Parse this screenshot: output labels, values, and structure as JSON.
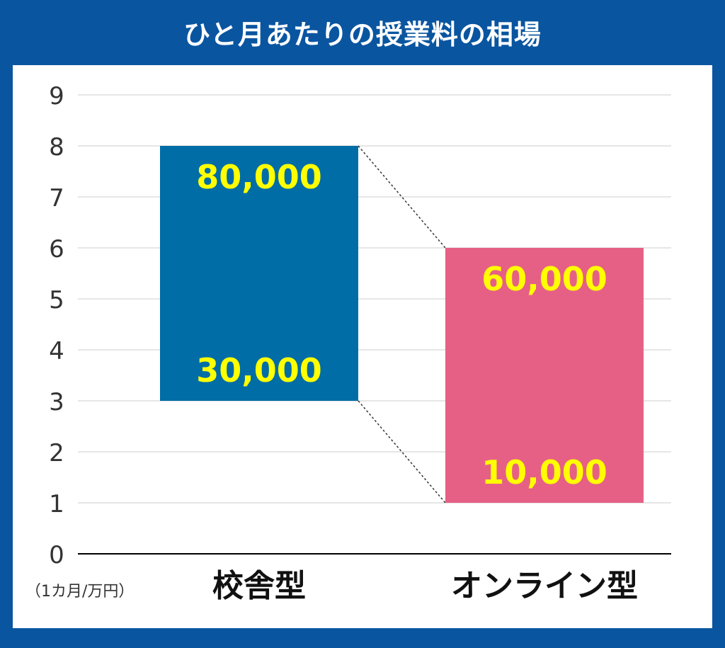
{
  "title": "ひと月あたりの授業料の相場",
  "unit_note": "（1カ月/万円）",
  "colors": {
    "background": "#0a55a0",
    "panel": "#ffffff",
    "bar_school": "#006da6",
    "bar_online": "#e66085",
    "value_label": "#ffff00",
    "grid": "#dddddd",
    "axis": "#000000"
  },
  "chart_data": {
    "type": "bar",
    "subtype": "floating-range",
    "title": "ひと月あたりの授業料の相場",
    "ylabel": "（1カ月/万円）",
    "ylim": [
      0,
      9
    ],
    "y_ticks": [
      "0",
      "1",
      "2",
      "3",
      "4",
      "5",
      "6",
      "7",
      "8",
      "9"
    ],
    "grid": true,
    "categories": [
      "校舎型",
      "オンライン型"
    ],
    "bars": [
      {
        "category": "校舎型",
        "low": 3,
        "high": 8,
        "low_label": "30,000",
        "high_label": "80,000",
        "color": "#006da6"
      },
      {
        "category": "オンライン型",
        "low": 1,
        "high": 6,
        "low_label": "10,000",
        "high_label": "60,000",
        "color": "#e66085"
      }
    ],
    "connectors": "dotted"
  }
}
